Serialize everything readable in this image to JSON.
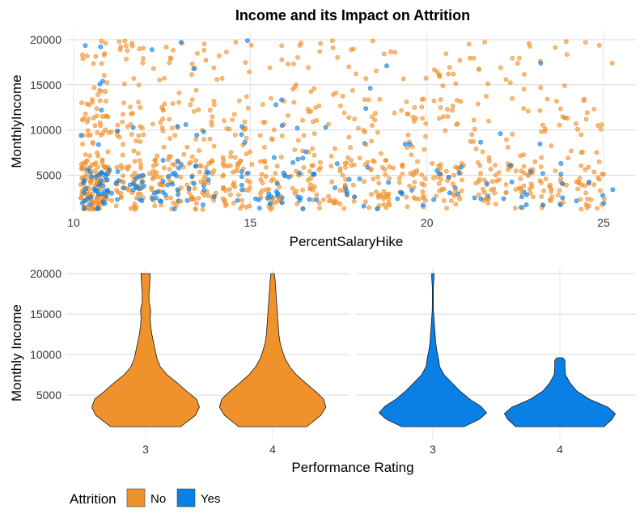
{
  "title": "Income and its Impact on Attrition",
  "colors": {
    "No": "#F0922B",
    "Yes": "#0A80E6"
  },
  "chart_data": [
    {
      "type": "scatter",
      "xlabel": "PercentSalaryHike",
      "ylabel": "MonthlyIncome",
      "xlim": [
        10,
        25
      ],
      "ylim": [
        1009,
        19999
      ],
      "x_ticks": [
        "10",
        "15",
        "20",
        "25"
      ],
      "y_ticks": [
        "5000",
        "10000",
        "15000",
        "20000"
      ],
      "grid": true,
      "note": "jittered points, ~1470 employees; orange = Attrition No, blue = Attrition Yes",
      "series": [
        {
          "name": "No",
          "points": [
            [
              11,
              4200
            ],
            [
              11,
              2600
            ],
            [
              11,
              6100
            ],
            [
              11,
              9800
            ],
            [
              11,
              18900
            ],
            [
              11,
              13200
            ],
            [
              11,
              3100
            ],
            [
              11,
              5400
            ],
            [
              11,
              7600
            ],
            [
              11,
              2200
            ],
            [
              12,
              4600
            ],
            [
              12,
              2900
            ],
            [
              12,
              5200
            ],
            [
              12,
              10400
            ],
            [
              12,
              19300
            ],
            [
              12,
              16800
            ],
            [
              12,
              3400
            ],
            [
              12,
              6700
            ],
            [
              12,
              8800
            ],
            [
              12,
              12500
            ],
            [
              13,
              2500
            ],
            [
              13,
              4800
            ],
            [
              13,
              3600
            ],
            [
              13,
              5900
            ],
            [
              13,
              11200
            ],
            [
              13,
              19600
            ],
            [
              13,
              14100
            ],
            [
              13,
              7300
            ],
            [
              13,
              2100
            ],
            [
              13,
              9400
            ],
            [
              14,
              3000
            ],
            [
              14,
              5500
            ],
            [
              14,
              4100
            ],
            [
              14,
              6600
            ],
            [
              14,
              10900
            ],
            [
              14,
              18200
            ],
            [
              14,
              15600
            ],
            [
              14,
              8200
            ],
            [
              14,
              2700
            ],
            [
              14,
              12800
            ],
            [
              15,
              4400
            ],
            [
              15,
              2800
            ],
            [
              15,
              6200
            ],
            [
              15,
              9100
            ],
            [
              15,
              19400
            ],
            [
              15,
              13700
            ],
            [
              15,
              5100
            ],
            [
              15,
              3300
            ],
            [
              16,
              4900
            ],
            [
              16,
              2400
            ],
            [
              16,
              7800
            ],
            [
              16,
              11600
            ],
            [
              16,
              17300
            ],
            [
              16,
              3700
            ],
            [
              16,
              6000
            ],
            [
              17,
              3500
            ],
            [
              17,
              5600
            ],
            [
              17,
              9600
            ],
            [
              17,
              19100
            ],
            [
              17,
              14600
            ],
            [
              17,
              2300
            ],
            [
              17,
              7100
            ],
            [
              18,
              4300
            ],
            [
              18,
              2600
            ],
            [
              18,
              6900
            ],
            [
              18,
              10200
            ],
            [
              18,
              16200
            ],
            [
              18,
              3900
            ],
            [
              18,
              8400
            ],
            [
              19,
              3200
            ],
            [
              19,
              5800
            ],
            [
              19,
              11900
            ],
            [
              19,
              18600
            ],
            [
              19,
              2900
            ],
            [
              19,
              7400
            ],
            [
              20,
              4700
            ],
            [
              20,
              2500
            ],
            [
              20,
              9300
            ],
            [
              20,
              13400
            ],
            [
              20,
              6300
            ],
            [
              21,
              3400
            ],
            [
              21,
              6100
            ],
            [
              21,
              10700
            ],
            [
              21,
              19500
            ],
            [
              21,
              2700
            ],
            [
              22,
              4500
            ],
            [
              22,
              2400
            ],
            [
              22,
              8100
            ],
            [
              22,
              16900
            ],
            [
              22,
              5300
            ],
            [
              23,
              3100
            ],
            [
              23,
              6500
            ],
            [
              23,
              12100
            ],
            [
              23,
              2600
            ],
            [
              24,
              4100
            ],
            [
              24,
              7700
            ],
            [
              24,
              19800
            ],
            [
              24,
              2800
            ],
            [
              25,
              3300
            ],
            [
              25,
              5100
            ],
            [
              25,
              10600
            ],
            [
              25,
              17400
            ],
            [
              25,
              2400
            ]
          ]
        },
        {
          "name": "Yes",
          "points": [
            [
              11,
              2300
            ],
            [
              11,
              4100
            ],
            [
              11,
              9900
            ],
            [
              11,
              19200
            ],
            [
              11,
              3000
            ],
            [
              11,
              5600
            ],
            [
              12,
              2500
            ],
            [
              12,
              3800
            ],
            [
              12,
              10300
            ],
            [
              12,
              18900
            ],
            [
              12,
              4900
            ],
            [
              13,
              2200
            ],
            [
              13,
              3400
            ],
            [
              13,
              6200
            ],
            [
              13,
              10600
            ],
            [
              13,
              19700
            ],
            [
              14,
              2600
            ],
            [
              14,
              4500
            ],
            [
              14,
              9800
            ],
            [
              14,
              5300
            ],
            [
              15,
              2400
            ],
            [
              15,
              3900
            ],
            [
              15,
              9500
            ],
            [
              15,
              19900
            ],
            [
              16,
              2700
            ],
            [
              16,
              4800
            ],
            [
              16,
              12800
            ],
            [
              17,
              2300
            ],
            [
              17,
              5100
            ],
            [
              17,
              10300
            ],
            [
              18,
              2600
            ],
            [
              18,
              4600
            ],
            [
              19,
              2400
            ],
            [
              19,
              4200
            ],
            [
              20,
              2300
            ],
            [
              20,
              5500
            ],
            [
              21,
              2500
            ],
            [
              21,
              5900
            ],
            [
              22,
              2400
            ],
            [
              22,
              9600
            ],
            [
              22,
              4100
            ],
            [
              23,
              2600
            ],
            [
              23,
              5200
            ],
            [
              24,
              2500
            ],
            [
              24,
              6300
            ],
            [
              25,
              1900
            ],
            [
              25,
              3400
            ]
          ]
        }
      ]
    },
    {
      "type": "violin",
      "xlabel": "Performance Rating",
      "ylabel": "Monthly Income",
      "ylim": [
        1009,
        19999
      ],
      "y_ticks": [
        "5000",
        "10000",
        "15000",
        "20000"
      ],
      "categories": [
        "3",
        "4"
      ],
      "grid": true,
      "panels": [
        {
          "name": "No",
          "violins": [
            {
              "category": "3",
              "profile": [
                [
                  1100,
                  0.62
                ],
                [
                  2500,
                  0.88
                ],
                [
                  3500,
                  0.95
                ],
                [
                  4500,
                  0.9
                ],
                [
                  5500,
                  0.72
                ],
                [
                  6500,
                  0.56
                ],
                [
                  7500,
                  0.38
                ],
                [
                  8500,
                  0.26
                ],
                [
                  9500,
                  0.2
                ],
                [
                  10500,
                  0.17
                ],
                [
                  11500,
                  0.14
                ],
                [
                  12500,
                  0.11
                ],
                [
                  13500,
                  0.09
                ],
                [
                  14500,
                  0.08
                ],
                [
                  15500,
                  0.09
                ],
                [
                  16500,
                  0.06
                ],
                [
                  17500,
                  0.06
                ],
                [
                  18500,
                  0.07
                ],
                [
                  19500,
                  0.08
                ],
                [
                  20000,
                  0.08
                ]
              ]
            },
            {
              "category": "4",
              "profile": [
                [
                  1100,
                  0.6
                ],
                [
                  2500,
                  0.85
                ],
                [
                  3500,
                  0.94
                ],
                [
                  4500,
                  0.9
                ],
                [
                  5500,
                  0.75
                ],
                [
                  6500,
                  0.58
                ],
                [
                  7500,
                  0.42
                ],
                [
                  8500,
                  0.3
                ],
                [
                  9500,
                  0.22
                ],
                [
                  10500,
                  0.17
                ],
                [
                  11500,
                  0.13
                ],
                [
                  12500,
                  0.11
                ],
                [
                  13500,
                  0.1
                ],
                [
                  14500,
                  0.09
                ],
                [
                  15500,
                  0.08
                ],
                [
                  16500,
                  0.07
                ],
                [
                  17500,
                  0.06
                ],
                [
                  18500,
                  0.05
                ],
                [
                  19500,
                  0.04
                ],
                [
                  20000,
                  0.03
                ]
              ]
            }
          ]
        },
        {
          "name": "Yes",
          "violins": [
            {
              "category": "3",
              "profile": [
                [
                  1100,
                  0.55
                ],
                [
                  2000,
                  0.82
                ],
                [
                  2800,
                  0.95
                ],
                [
                  3600,
                  0.85
                ],
                [
                  4500,
                  0.65
                ],
                [
                  5500,
                  0.48
                ],
                [
                  6500,
                  0.34
                ],
                [
                  7500,
                  0.2
                ],
                [
                  8500,
                  0.12
                ],
                [
                  9500,
                  0.1
                ],
                [
                  10500,
                  0.07
                ],
                [
                  11500,
                  0.05
                ],
                [
                  12500,
                  0.04
                ],
                [
                  13500,
                  0.03
                ],
                [
                  14500,
                  0.02
                ],
                [
                  15500,
                  0.01
                ],
                [
                  16500,
                  0.005
                ],
                [
                  17500,
                  0.003
                ],
                [
                  18500,
                  0.01
                ],
                [
                  19500,
                  0.02
                ],
                [
                  20000,
                  0.02
                ]
              ]
            },
            {
              "category": "4",
              "profile": [
                [
                  1100,
                  0.78
                ],
                [
                  2000,
                  0.92
                ],
                [
                  2700,
                  0.98
                ],
                [
                  3500,
                  0.85
                ],
                [
                  4500,
                  0.52
                ],
                [
                  5500,
                  0.3
                ],
                [
                  6500,
                  0.18
                ],
                [
                  7500,
                  0.1
                ],
                [
                  8500,
                  0.09
                ],
                [
                  9300,
                  0.09
                ],
                [
                  9600,
                  0.05
                ]
              ]
            }
          ]
        }
      ]
    }
  ],
  "legend": {
    "title": "Attrition",
    "items": [
      {
        "label": "No",
        "color": "#F0922B"
      },
      {
        "label": "Yes",
        "color": "#0A80E6"
      }
    ]
  }
}
